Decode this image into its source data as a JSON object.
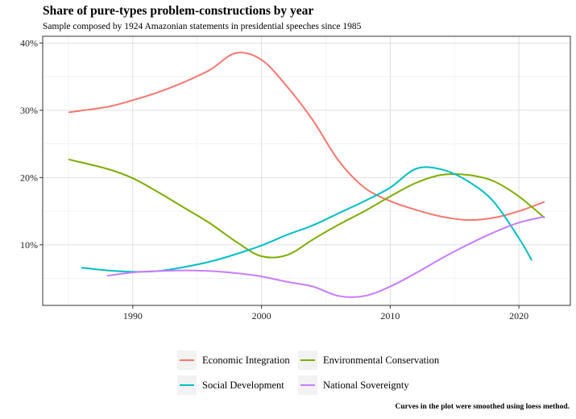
{
  "chart_data": {
    "type": "line",
    "title": "Share of pure-types problem-constructions by year",
    "subtitle": "Sample composed by 1924 Amazonian statements in presidential speeches since 1985",
    "caption": "Curves in the plot were smoothed using loess method.",
    "xlabel": "",
    "ylabel": "",
    "xlim": [
      1983,
      2024
    ],
    "ylim": [
      1,
      41
    ],
    "x_ticks": [
      1990,
      2000,
      2010,
      2020
    ],
    "y_ticks": [
      10,
      20,
      30,
      40
    ],
    "y_tick_labels": [
      "10%",
      "20%",
      "30%",
      "40%"
    ],
    "grid": true,
    "legend_position": "bottom",
    "series": [
      {
        "name": "Economic Integration",
        "color": "#F8766D",
        "points": [
          [
            1985,
            29.7
          ],
          [
            1988,
            30.5
          ],
          [
            1990,
            31.5
          ],
          [
            1992,
            32.7
          ],
          [
            1994,
            34.2
          ],
          [
            1996,
            36.0
          ],
          [
            1998,
            38.5
          ],
          [
            2000,
            37.5
          ],
          [
            2002,
            33.5
          ],
          [
            2004,
            28.5
          ],
          [
            2006,
            22.5
          ],
          [
            2008,
            18.5
          ],
          [
            2010,
            16.5
          ],
          [
            2012,
            15.2
          ],
          [
            2014,
            14.2
          ],
          [
            2016,
            13.7
          ],
          [
            2018,
            14.0
          ],
          [
            2020,
            15.0
          ],
          [
            2022,
            16.4
          ]
        ]
      },
      {
        "name": "Environmental Conservation",
        "color": "#7CAE00",
        "points": [
          [
            1985,
            22.7
          ],
          [
            1988,
            21.3
          ],
          [
            1990,
            19.9
          ],
          [
            1992,
            17.8
          ],
          [
            1994,
            15.5
          ],
          [
            1996,
            13.2
          ],
          [
            1998,
            10.5
          ],
          [
            2000,
            8.3
          ],
          [
            2002,
            8.5
          ],
          [
            2004,
            10.8
          ],
          [
            2006,
            13.0
          ],
          [
            2008,
            15.0
          ],
          [
            2010,
            17.2
          ],
          [
            2012,
            19.2
          ],
          [
            2014,
            20.4
          ],
          [
            2016,
            20.4
          ],
          [
            2018,
            19.5
          ],
          [
            2020,
            17.2
          ],
          [
            2022,
            14.0
          ]
        ]
      },
      {
        "name": "Social Development",
        "color": "#00BFC4",
        "points": [
          [
            1986,
            6.6
          ],
          [
            1988,
            6.2
          ],
          [
            1990,
            6.0
          ],
          [
            1992,
            6.1
          ],
          [
            1994,
            6.7
          ],
          [
            1996,
            7.5
          ],
          [
            1998,
            8.6
          ],
          [
            2000,
            9.9
          ],
          [
            2002,
            11.5
          ],
          [
            2004,
            12.9
          ],
          [
            2006,
            14.7
          ],
          [
            2008,
            16.5
          ],
          [
            2010,
            18.5
          ],
          [
            2012,
            21.3
          ],
          [
            2014,
            21.2
          ],
          [
            2016,
            19.5
          ],
          [
            2018,
            16.5
          ],
          [
            2020,
            11.0
          ],
          [
            2021,
            7.7
          ]
        ]
      },
      {
        "name": "National Sovereignty",
        "color": "#C77CFF",
        "points": [
          [
            1988,
            5.4
          ],
          [
            1990,
            5.9
          ],
          [
            1992,
            6.1
          ],
          [
            1994,
            6.2
          ],
          [
            1996,
            6.1
          ],
          [
            1998,
            5.8
          ],
          [
            2000,
            5.3
          ],
          [
            2002,
            4.5
          ],
          [
            2004,
            3.8
          ],
          [
            2006,
            2.4
          ],
          [
            2008,
            2.4
          ],
          [
            2010,
            3.8
          ],
          [
            2012,
            5.8
          ],
          [
            2014,
            8.0
          ],
          [
            2016,
            10.0
          ],
          [
            2018,
            11.8
          ],
          [
            2020,
            13.3
          ],
          [
            2022,
            14.2
          ]
        ]
      }
    ]
  }
}
